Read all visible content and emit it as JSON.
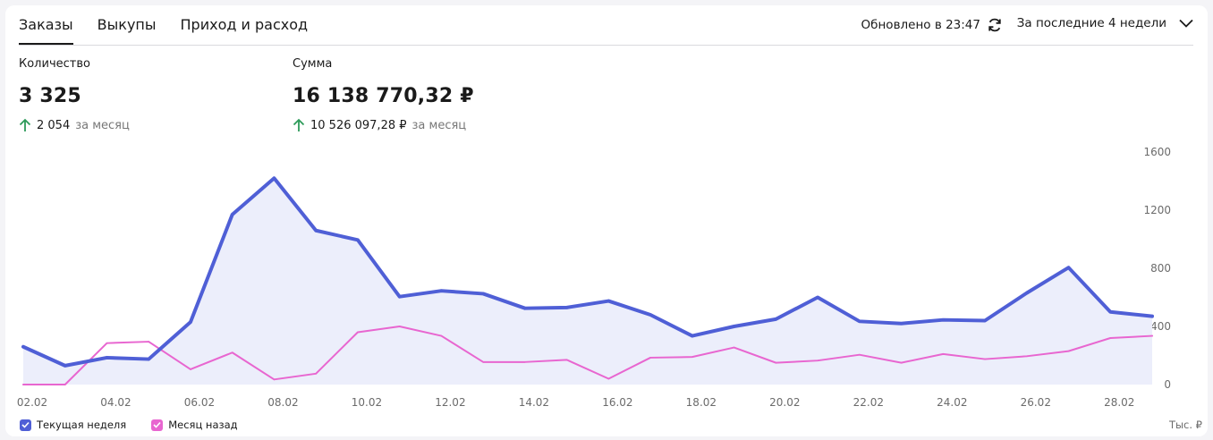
{
  "tabs": [
    "Заказы",
    "Выкупы",
    "Приход и расход"
  ],
  "updated": "Обновлено в 23:47",
  "period": "За последние 4 недели",
  "metrics": {
    "count": {
      "label": "Количество",
      "value": "3 325",
      "delta": "2 054",
      "delta_suffix": "за месяц"
    },
    "sum": {
      "label": "Сумма",
      "value": "16 138 770,32 ₽",
      "delta": "10 526 097,28 ₽",
      "delta_suffix": "за месяц"
    }
  },
  "legend": {
    "current": "Текущая неделя",
    "prev": "Месяц назад"
  },
  "unit": "Тыс. ₽",
  "colors": {
    "current": "#4f5fd6",
    "prev": "#e866d0",
    "fill": "#eceefb",
    "up": "#2e9b5a"
  },
  "chart_data": {
    "type": "line",
    "x": [
      "02.02",
      "03.02",
      "04.02",
      "05.02",
      "06.02",
      "07.02",
      "08.02",
      "09.02",
      "10.02",
      "11.02",
      "12.02",
      "13.02",
      "14.02",
      "15.02",
      "16.02",
      "17.02",
      "18.02",
      "19.02",
      "20.02",
      "21.02",
      "22.02",
      "23.02",
      "24.02",
      "25.02",
      "26.02",
      "27.02",
      "28.02",
      "29.02"
    ],
    "x_tick_labels": [
      "02.02",
      "04.02",
      "06.02",
      "08.02",
      "10.02",
      "12.02",
      "14.02",
      "16.02",
      "18.02",
      "20.02",
      "22.02",
      "24.02",
      "26.02",
      "28.02"
    ],
    "ylim": [
      0,
      1600
    ],
    "y_ticks": [
      0,
      400,
      800,
      1200,
      1600
    ],
    "y_axis_side": "right",
    "series": [
      {
        "name": "Текущая неделя",
        "values": [
          260,
          130,
          185,
          175,
          430,
          1170,
          1420,
          1060,
          995,
          605,
          645,
          625,
          525,
          530,
          575,
          480,
          335,
          400,
          450,
          600,
          435,
          420,
          445,
          440,
          630,
          805,
          500,
          470
        ],
        "area": true
      },
      {
        "name": "Месяц назад",
        "values": [
          0,
          0,
          285,
          295,
          105,
          220,
          35,
          75,
          360,
          400,
          335,
          155,
          155,
          170,
          40,
          185,
          190,
          255,
          150,
          165,
          205,
          150,
          210,
          175,
          195,
          230,
          320,
          335
        ]
      }
    ]
  }
}
